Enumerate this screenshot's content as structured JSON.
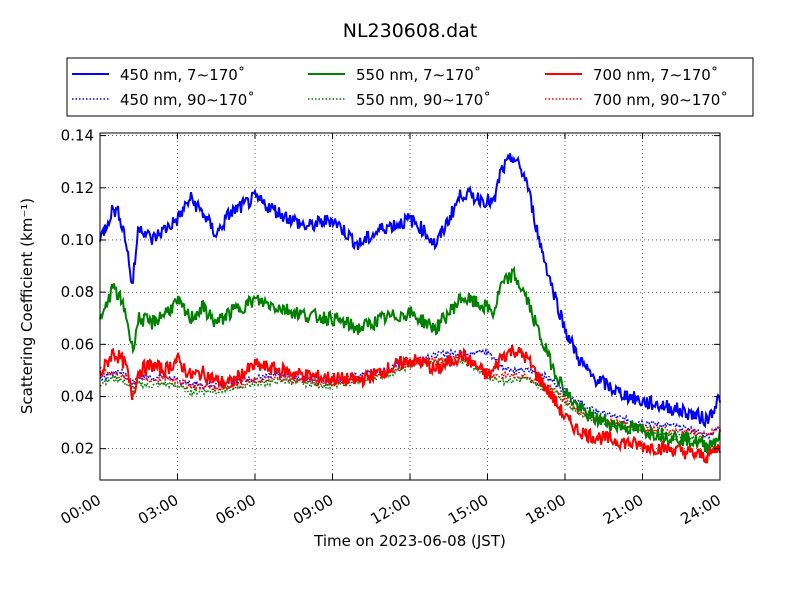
{
  "chart_data": {
    "type": "line",
    "title": "NL230608.dat",
    "xlabel": "Time on 2023-06-08 (JST)",
    "ylabel": "Scattering Coefficient (km⁻¹)",
    "xlim": [
      "2023-06-08 00:00",
      "2023-06-09 00:00"
    ],
    "ylim": [
      0.008,
      0.141
    ],
    "x_ticks": [
      "00:00",
      "03:00",
      "06:00",
      "09:00",
      "12:00",
      "15:00",
      "18:00",
      "21:00",
      "24:00"
    ],
    "y_ticks": [
      "0.02",
      "0.04",
      "0.06",
      "0.08",
      "0.10",
      "0.12",
      "0.14"
    ],
    "grid": true,
    "legend_position": "top",
    "x_hours": [
      0,
      0.5,
      0.75,
      1,
      1.25,
      1.5,
      2,
      2.5,
      3,
      3.5,
      4,
      4.5,
      5,
      6,
      7,
      8,
      9,
      10,
      11,
      11.5,
      12,
      12.5,
      13,
      14,
      15,
      15.25,
      15.5,
      16,
      16.5,
      17,
      17.5,
      18,
      18.5,
      19,
      20,
      21,
      22,
      23,
      23.5,
      24
    ],
    "series": [
      {
        "name": "450 nm, 7∼170˚",
        "color": "#0000ff",
        "dash": "solid",
        "values": [
          0.1,
          0.112,
          0.11,
          0.1,
          0.082,
          0.106,
          0.1,
          0.104,
          0.108,
          0.116,
          0.11,
          0.102,
          0.11,
          0.116,
          0.11,
          0.105,
          0.108,
          0.098,
          0.105,
          0.106,
          0.108,
          0.104,
          0.098,
          0.118,
          0.115,
          0.114,
          0.126,
          0.132,
          0.123,
          0.1,
          0.082,
          0.066,
          0.055,
          0.048,
          0.042,
          0.038,
          0.036,
          0.033,
          0.031,
          0.04
        ]
      },
      {
        "name": "450 nm, 90∼170˚",
        "color": "#0000ff",
        "dash": "dotted",
        "values": [
          0.047,
          0.049,
          0.05,
          0.048,
          0.045,
          0.048,
          0.047,
          0.048,
          0.046,
          0.045,
          0.044,
          0.045,
          0.046,
          0.047,
          0.048,
          0.047,
          0.046,
          0.048,
          0.05,
          0.052,
          0.054,
          0.055,
          0.056,
          0.057,
          0.057,
          0.055,
          0.052,
          0.05,
          0.05,
          0.049,
          0.046,
          0.042,
          0.038,
          0.035,
          0.032,
          0.03,
          0.029,
          0.027,
          0.025,
          0.028
        ]
      },
      {
        "name": "550 nm, 7∼170˚",
        "color": "#008000",
        "dash": "solid",
        "values": [
          0.068,
          0.082,
          0.078,
          0.072,
          0.058,
          0.07,
          0.068,
          0.072,
          0.076,
          0.07,
          0.074,
          0.068,
          0.072,
          0.077,
          0.074,
          0.071,
          0.07,
          0.066,
          0.07,
          0.071,
          0.072,
          0.069,
          0.066,
          0.078,
          0.074,
          0.072,
          0.082,
          0.087,
          0.078,
          0.064,
          0.052,
          0.042,
          0.036,
          0.032,
          0.029,
          0.027,
          0.025,
          0.023,
          0.021,
          0.025
        ]
      },
      {
        "name": "550 nm, 90∼170˚",
        "color": "#008000",
        "dash": "dotted",
        "values": [
          0.045,
          0.047,
          0.047,
          0.045,
          0.042,
          0.045,
          0.044,
          0.045,
          0.044,
          0.042,
          0.042,
          0.042,
          0.043,
          0.045,
          0.046,
          0.045,
          0.044,
          0.046,
          0.048,
          0.05,
          0.052,
          0.053,
          0.053,
          0.054,
          0.048,
          0.047,
          0.046,
          0.046,
          0.047,
          0.044,
          0.042,
          0.038,
          0.034,
          0.032,
          0.029,
          0.027,
          0.025,
          0.024,
          0.022,
          0.024
        ]
      },
      {
        "name": "700 nm, 7∼170˚",
        "color": "#ff0000",
        "dash": "solid",
        "values": [
          0.048,
          0.057,
          0.055,
          0.052,
          0.04,
          0.05,
          0.052,
          0.05,
          0.054,
          0.048,
          0.049,
          0.046,
          0.045,
          0.052,
          0.05,
          0.048,
          0.047,
          0.046,
          0.05,
          0.052,
          0.054,
          0.053,
          0.05,
          0.056,
          0.048,
          0.05,
          0.055,
          0.058,
          0.055,
          0.047,
          0.04,
          0.032,
          0.027,
          0.025,
          0.023,
          0.021,
          0.02,
          0.018,
          0.017,
          0.021
        ]
      },
      {
        "name": "700 nm, 90∼170˚",
        "color": "#ff0000",
        "dash": "dotted",
        "values": [
          0.05,
          0.049,
          0.048,
          0.047,
          0.044,
          0.047,
          0.046,
          0.047,
          0.046,
          0.044,
          0.044,
          0.043,
          0.044,
          0.046,
          0.047,
          0.046,
          0.045,
          0.047,
          0.049,
          0.051,
          0.053,
          0.054,
          0.054,
          0.055,
          0.05,
          0.048,
          0.048,
          0.048,
          0.048,
          0.045,
          0.043,
          0.039,
          0.035,
          0.032,
          0.03,
          0.028,
          0.027,
          0.026,
          0.025,
          0.028
        ]
      }
    ]
  }
}
